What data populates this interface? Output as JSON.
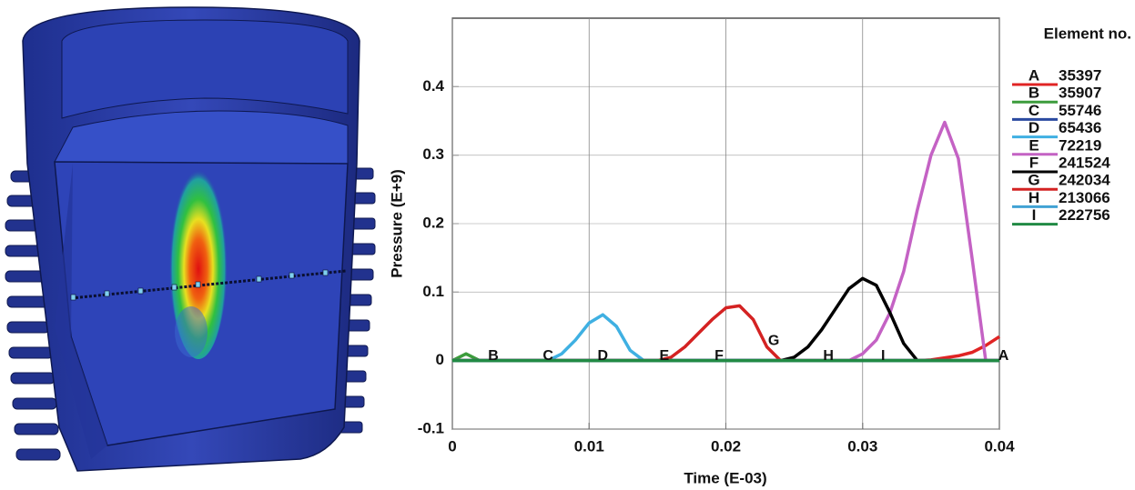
{
  "chart_data": {
    "type": "line",
    "x_label": "Time (E-03)",
    "y_label": "Pressure (E+9)",
    "legend_title": "Element no.",
    "x": [
      0,
      0.001,
      0.002,
      0.003,
      0.004,
      0.005,
      0.006,
      0.007,
      0.008,
      0.009,
      0.01,
      0.011,
      0.012,
      0.013,
      0.014,
      0.015,
      0.016,
      0.017,
      0.018,
      0.019,
      0.02,
      0.021,
      0.022,
      0.023,
      0.024,
      0.025,
      0.026,
      0.027,
      0.028,
      0.029,
      0.03,
      0.031,
      0.032,
      0.033,
      0.034,
      0.035,
      0.036,
      0.037,
      0.038,
      0.039,
      0.04
    ],
    "series": [
      {
        "name": "35397",
        "letter": "A",
        "color": "#e02424",
        "values": [
          0,
          0,
          0,
          0,
          0,
          0,
          0,
          0,
          0,
          0,
          0,
          0,
          0,
          0,
          0,
          0,
          0,
          0,
          0,
          0,
          0,
          0,
          0,
          0,
          0,
          0,
          0,
          0,
          0,
          0,
          0,
          0,
          0,
          0,
          0,
          0.001,
          0.004,
          0.007,
          0.012,
          0.022,
          0.035
        ]
      },
      {
        "name": "35907",
        "letter": "B",
        "color": "#3c9c3c",
        "values": [
          0,
          0.01,
          0,
          0,
          0,
          0,
          0,
          0,
          0,
          0,
          0,
          0,
          0,
          0,
          0,
          0,
          0,
          0,
          0,
          0,
          0,
          0,
          0,
          0,
          0,
          0,
          0,
          0,
          0,
          0,
          0,
          0,
          0,
          0,
          0,
          0,
          0,
          0,
          0,
          0,
          0
        ]
      },
      {
        "name": "55746",
        "letter": "C",
        "color": "#2a4aa0",
        "values": [
          0,
          0,
          0,
          0,
          0,
          0,
          0,
          0,
          0,
          0,
          0,
          0,
          0,
          0,
          0,
          0,
          0,
          0,
          0,
          0,
          0,
          0,
          0,
          0,
          0,
          0,
          0,
          0,
          0,
          0,
          0,
          0,
          0,
          0,
          0,
          0,
          0,
          0,
          0,
          0,
          0
        ]
      },
      {
        "name": "65436",
        "letter": "D",
        "color": "#3fb0e2",
        "values": [
          0,
          0,
          0,
          0,
          0,
          0,
          0,
          0,
          0.01,
          0.03,
          0.055,
          0.067,
          0.05,
          0.015,
          0,
          0,
          0,
          0,
          0,
          0,
          0,
          0,
          0,
          0,
          0,
          0,
          0,
          0,
          0,
          0,
          0,
          0,
          0,
          0,
          0,
          0,
          0,
          0,
          0,
          0,
          0
        ]
      },
      {
        "name": "72219",
        "letter": "E",
        "color": "#c462c4",
        "values": [
          0,
          0,
          0,
          0,
          0,
          0,
          0,
          0,
          0,
          0,
          0,
          0,
          0,
          0,
          0,
          0,
          0,
          0,
          0,
          0,
          0,
          0,
          0,
          0,
          0,
          0,
          0,
          0,
          0,
          0,
          0.01,
          0.03,
          0.07,
          0.13,
          0.22,
          0.3,
          0.348,
          0.295,
          0.15,
          0,
          0
        ]
      },
      {
        "name": "241524",
        "letter": "F",
        "color": "#000000",
        "values": [
          0,
          0,
          0,
          0,
          0,
          0,
          0,
          0,
          0,
          0,
          0,
          0,
          0,
          0,
          0,
          0,
          0,
          0,
          0,
          0,
          0,
          0,
          0,
          0,
          0,
          0.005,
          0.02,
          0.045,
          0.075,
          0.105,
          0.12,
          0.11,
          0.07,
          0.025,
          0,
          0,
          0,
          0,
          0,
          0,
          0
        ]
      },
      {
        "name": "242034",
        "letter": "G",
        "color": "#d42222",
        "values": [
          0,
          0,
          0,
          0,
          0,
          0,
          0,
          0,
          0,
          0,
          0,
          0,
          0,
          0,
          0,
          0,
          0.005,
          0.02,
          0.04,
          0.06,
          0.077,
          0.08,
          0.06,
          0.02,
          0,
          0,
          0,
          0,
          0,
          0,
          0,
          0,
          0,
          0,
          0,
          0,
          0,
          0,
          0,
          0,
          0
        ]
      },
      {
        "name": "213066",
        "letter": "H",
        "color": "#41a2d4",
        "values": [
          0,
          0,
          0,
          0,
          0,
          0,
          0,
          0,
          0,
          0,
          0,
          0,
          0,
          0,
          0,
          0,
          0,
          0,
          0,
          0,
          0,
          0,
          0,
          0,
          0,
          0,
          0,
          0,
          0,
          0,
          0,
          0,
          0,
          0,
          0,
          0,
          0,
          0,
          0,
          0,
          0
        ]
      },
      {
        "name": "222756",
        "letter": "I",
        "color": "#218a44",
        "values": [
          0,
          0,
          0,
          0,
          0,
          0,
          0,
          0,
          0,
          0,
          0,
          0,
          0,
          0,
          0,
          0,
          0,
          0,
          0,
          0,
          0,
          0,
          0,
          0,
          0,
          0,
          0,
          0,
          0,
          0,
          0,
          0,
          0,
          0,
          0,
          0,
          0,
          0,
          0,
          0,
          0
        ]
      }
    ],
    "annotations": [
      {
        "text": "B",
        "x": 0.003,
        "y": 0
      },
      {
        "text": "C",
        "x": 0.007,
        "y": 0
      },
      {
        "text": "D",
        "x": 0.011,
        "y": 0
      },
      {
        "text": "E",
        "x": 0.0155,
        "y": 0
      },
      {
        "text": "F",
        "x": 0.0195,
        "y": 0
      },
      {
        "text": "G",
        "x": 0.0235,
        "y": 0.022
      },
      {
        "text": "H",
        "x": 0.0275,
        "y": 0
      },
      {
        "text": "I",
        "x": 0.0315,
        "y": 0
      },
      {
        "text": "A",
        "x": 0.0403,
        "y": 0
      }
    ],
    "xlim": [
      0,
      0.04
    ],
    "xticks": [
      0,
      0.01,
      0.02,
      0.03,
      0.04
    ],
    "ylim": [
      -0.1,
      0.5
    ],
    "yticks": [
      -0.1,
      0,
      0.1,
      0.2,
      0.3,
      0.4
    ],
    "grid": true
  }
}
